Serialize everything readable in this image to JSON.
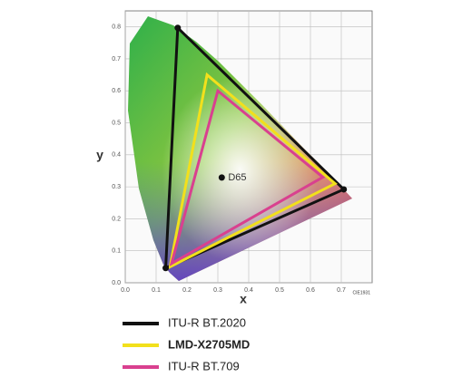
{
  "chart_data": {
    "type": "chromaticity",
    "x_label": "x",
    "y_label": "y",
    "footnote": "CIE1931",
    "xlim": [
      0,
      0.8
    ],
    "ylim": [
      0,
      0.85
    ],
    "xticks": [
      {
        "value": 0,
        "label": "0.0"
      },
      0.1,
      0.2,
      0.3,
      0.4,
      0.5,
      0.6,
      0.7
    ],
    "yticks": [
      {
        "value": 0,
        "label": "0.0"
      },
      0.1,
      0.2,
      0.3,
      0.4,
      0.5,
      0.6,
      0.7,
      0.8
    ],
    "grid": true,
    "series": [
      {
        "name": "ITU-R BT.2020",
        "color": "#111111",
        "markers": true,
        "x": [
          0.708,
          0.17,
          0.131
        ],
        "values": [
          0.292,
          0.797,
          0.046
        ]
      },
      {
        "name": "LMD-X2705MD",
        "color": "#f2e01c",
        "markers": false,
        "x": [
          0.68,
          0.265,
          0.145
        ],
        "values": [
          0.31,
          0.65,
          0.05
        ]
      },
      {
        "name": "ITU-R BT.709",
        "color": "#d9408f",
        "markers": false,
        "x": [
          0.64,
          0.3,
          0.15
        ],
        "values": [
          0.33,
          0.6,
          0.06
        ]
      }
    ],
    "annotation": {
      "label": "D65",
      "x": 0.3127,
      "y": 0.329
    }
  }
}
